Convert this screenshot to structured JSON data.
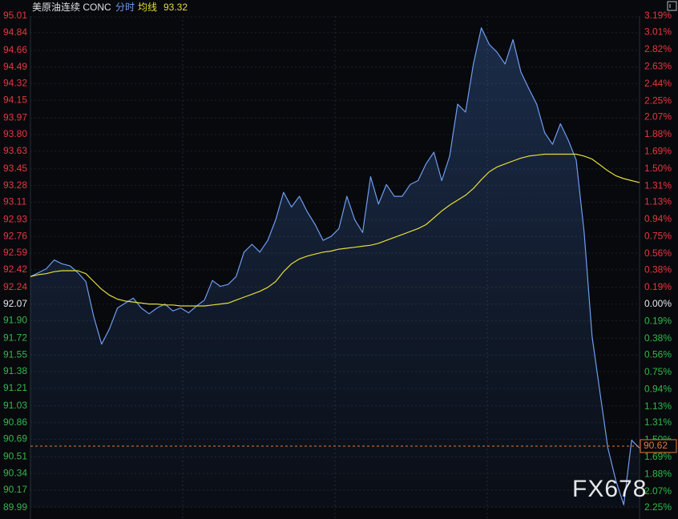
{
  "chart_data": {
    "type": "line",
    "title": "美原油连续 CONC",
    "avg_value": 93.32,
    "last_price": 90.62,
    "watermark": "FX678",
    "up_color": "#e8383d",
    "down_color": "#33b84a",
    "flat_color": "#e6e6e6",
    "grid": true,
    "ylim": [
      89.99,
      95.01
    ],
    "yticks": [
      95.01,
      94.84,
      94.66,
      94.49,
      94.32,
      94.15,
      93.97,
      {
        "value": 93.8,
        "label": "93.80"
      },
      93.63,
      93.45,
      93.28,
      93.11,
      92.93,
      92.76,
      92.59,
      92.42,
      92.24,
      92.07,
      {
        "value": 91.9,
        "label": "91.90"
      },
      91.72,
      91.55,
      91.38,
      91.21,
      91.03,
      90.86,
      90.69,
      90.51,
      90.34,
      90.17,
      89.99
    ],
    "y2lim": [
      -2.25,
      3.19
    ],
    "y2ticks": [
      {
        "value": 3.19,
        "label": "3.19%"
      },
      {
        "value": 3.01,
        "label": "3.01%"
      },
      {
        "value": 2.82,
        "label": "2.82%"
      },
      {
        "value": 2.63,
        "label": "2.63%"
      },
      {
        "value": 2.44,
        "label": "2.44%"
      },
      {
        "value": 2.25,
        "label": "2.25%"
      },
      {
        "value": 2.07,
        "label": "2.07%"
      },
      {
        "value": 1.88,
        "label": "1.88%"
      },
      {
        "value": 1.69,
        "label": "1.69%"
      },
      {
        "value": 1.5,
        "label": "1.50%"
      },
      {
        "value": 1.31,
        "label": "1.31%"
      },
      {
        "value": 1.13,
        "label": "1.13%"
      },
      {
        "value": 0.94,
        "label": "0.94%"
      },
      {
        "value": 0.75,
        "label": "0.75%"
      },
      {
        "value": 0.56,
        "label": "0.56%"
      },
      {
        "value": 0.38,
        "label": "0.38%"
      },
      {
        "value": 0.19,
        "label": "0.19%"
      },
      {
        "value": 0,
        "label": "0.00%"
      },
      {
        "value": -0.19,
        "label": "0.19%"
      },
      {
        "value": -0.38,
        "label": "0.38%"
      },
      {
        "value": -0.56,
        "label": "0.56%"
      },
      {
        "value": -0.75,
        "label": "0.75%"
      },
      {
        "value": -0.94,
        "label": "0.94%"
      },
      {
        "value": -1.13,
        "label": "1.13%"
      },
      {
        "value": -1.31,
        "label": "1.31%"
      },
      {
        "value": -1.5,
        "label": "1.50%"
      },
      {
        "value": -1.69,
        "label": "1.69%"
      },
      {
        "value": -1.88,
        "label": "1.88%"
      },
      {
        "value": -2.07,
        "label": "2.07%"
      },
      {
        "value": -2.25,
        "label": "2.25%"
      }
    ],
    "series": [
      {
        "name": "分时",
        "color": "#6f9cf0",
        "values": [
          92.35,
          92.39,
          92.43,
          92.52,
          92.48,
          92.46,
          92.39,
          92.3,
          91.94,
          91.66,
          91.82,
          92.03,
          92.08,
          92.13,
          92.03,
          91.97,
          92.03,
          92.07,
          92.0,
          92.03,
          91.98,
          92.05,
          92.11,
          92.31,
          92.25,
          92.27,
          92.35,
          92.6,
          92.68,
          92.6,
          92.72,
          92.93,
          93.21,
          93.06,
          93.17,
          93.01,
          92.88,
          92.72,
          92.76,
          92.84,
          93.17,
          92.93,
          92.8,
          93.37,
          93.09,
          93.29,
          93.17,
          93.17,
          93.29,
          93.33,
          93.5,
          93.62,
          93.33,
          93.58,
          94.11,
          94.03,
          94.52,
          94.89,
          94.72,
          94.64,
          94.52,
          94.77,
          94.44,
          94.27,
          94.11,
          93.82,
          93.7,
          93.91,
          93.74,
          93.54,
          92.8,
          91.74,
          91.17,
          90.6,
          90.27,
          90.02,
          90.68,
          90.6
        ]
      },
      {
        "name": "均线",
        "color": "#e6dc3c",
        "values": [
          92.35,
          92.37,
          92.38,
          92.4,
          92.41,
          92.41,
          92.41,
          92.38,
          92.3,
          92.22,
          92.16,
          92.12,
          92.1,
          92.09,
          92.08,
          92.07,
          92.07,
          92.06,
          92.06,
          92.05,
          92.05,
          92.05,
          92.05,
          92.06,
          92.07,
          92.08,
          92.11,
          92.14,
          92.17,
          92.2,
          92.24,
          92.3,
          92.4,
          92.48,
          92.53,
          92.56,
          92.58,
          92.6,
          92.61,
          92.63,
          92.64,
          92.65,
          92.66,
          92.67,
          92.69,
          92.72,
          92.75,
          92.78,
          92.81,
          92.84,
          92.88,
          92.95,
          93.02,
          93.08,
          93.13,
          93.18,
          93.25,
          93.34,
          93.42,
          93.47,
          93.5,
          93.53,
          93.56,
          93.58,
          93.59,
          93.6,
          93.6,
          93.6,
          93.6,
          93.6,
          93.58,
          93.55,
          93.49,
          93.43,
          93.38,
          93.35,
          93.33,
          93.31
        ]
      }
    ]
  }
}
